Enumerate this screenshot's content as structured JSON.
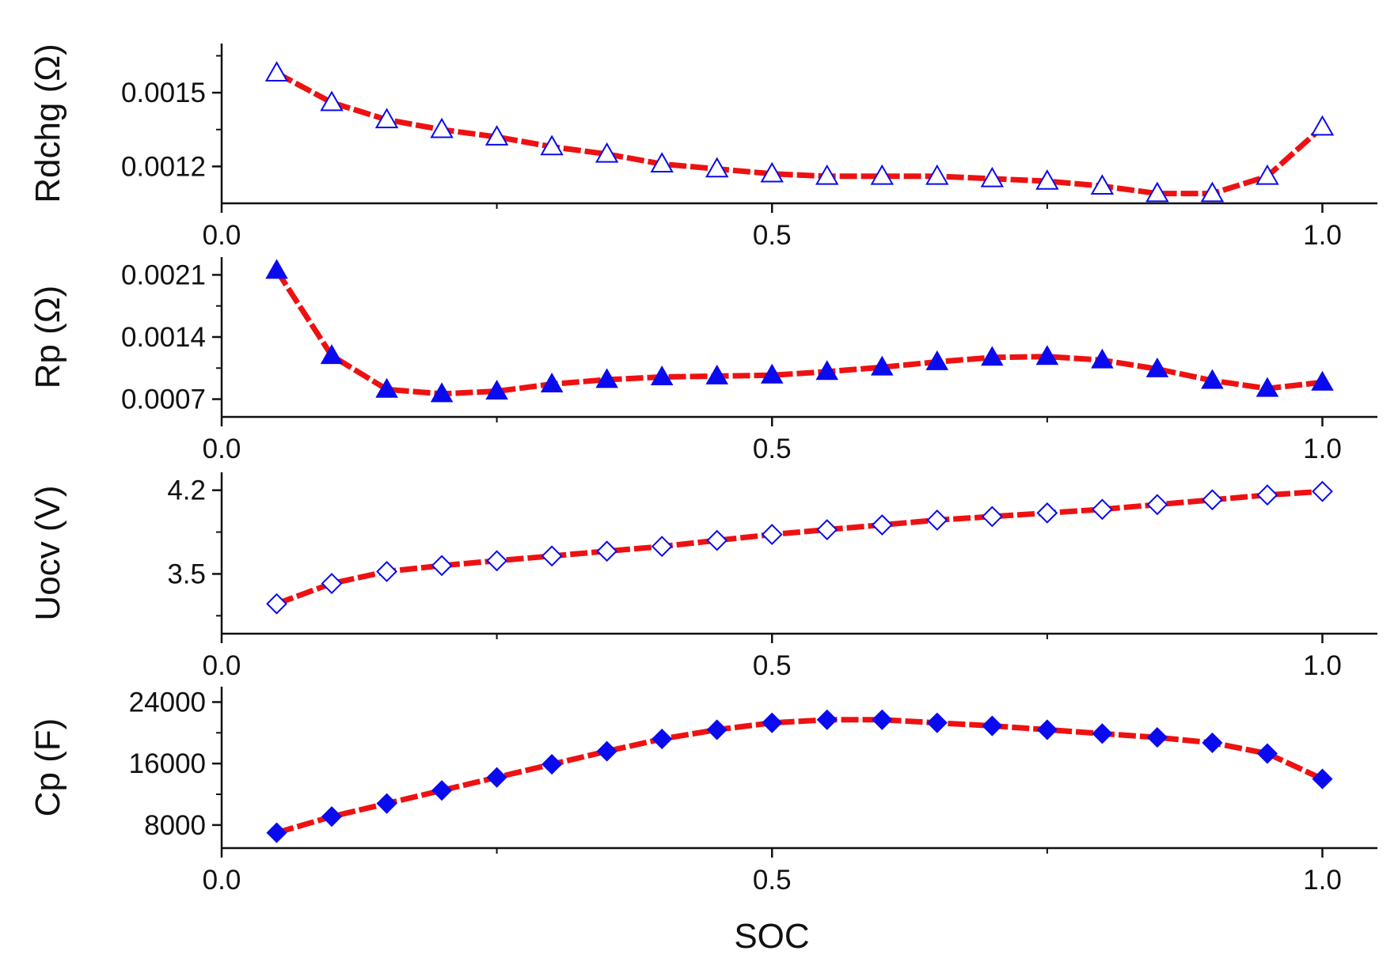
{
  "chart_data": [
    {
      "type": "line",
      "ylabel": "Rdchg (Ω)",
      "xlabel": "",
      "xlim": [
        0.0,
        1.05
      ],
      "ylim": [
        0.00105,
        0.0017
      ],
      "xticks": [
        "0.0",
        "0.5",
        "1.0"
      ],
      "yticks": [
        {
          "value": 0.0015,
          "label": "0.0015"
        },
        {
          "value": 0.0012,
          "label": "0.0012"
        }
      ],
      "marker": "triangle-open",
      "series": [
        {
          "name": "Rdchg",
          "x": [
            0.05,
            0.1,
            0.15,
            0.2,
            0.25,
            0.3,
            0.35,
            0.4,
            0.45,
            0.5,
            0.55,
            0.6,
            0.65,
            0.7,
            0.75,
            0.8,
            0.85,
            0.9,
            0.95,
            1.0
          ],
          "values": [
            0.00158,
            0.00146,
            0.00139,
            0.00135,
            0.00132,
            0.00128,
            0.00125,
            0.00121,
            0.00119,
            0.00117,
            0.00116,
            0.00116,
            0.00116,
            0.00115,
            0.00114,
            0.00112,
            0.00109,
            0.00109,
            0.00116,
            0.00136
          ]
        }
      ]
    },
    {
      "type": "line",
      "ylabel": "Rp (Ω)",
      "xlabel": "",
      "xlim": [
        0.0,
        1.05
      ],
      "ylim": [
        0.0005,
        0.0023
      ],
      "xticks": [
        "0.0",
        "0.5",
        "1.0"
      ],
      "yticks": [
        {
          "value": 0.0021,
          "label": "0.0021"
        },
        {
          "value": 0.0014,
          "label": "0.0014"
        },
        {
          "value": 0.0007,
          "label": "0.0007"
        }
      ],
      "marker": "triangle-filled",
      "series": [
        {
          "name": "Rp",
          "x": [
            0.05,
            0.1,
            0.15,
            0.2,
            0.25,
            0.3,
            0.35,
            0.4,
            0.45,
            0.5,
            0.55,
            0.6,
            0.65,
            0.7,
            0.75,
            0.8,
            0.85,
            0.9,
            0.95,
            1.0
          ],
          "values": [
            0.00215,
            0.00119,
            0.00081,
            0.00076,
            0.00079,
            0.00087,
            0.00092,
            0.00095,
            0.00096,
            0.00097,
            0.00101,
            0.00106,
            0.00112,
            0.00117,
            0.00118,
            0.00114,
            0.00104,
            0.00091,
            0.00082,
            0.00089
          ]
        }
      ]
    },
    {
      "type": "line",
      "ylabel": "Uocv (V)",
      "xlabel": "",
      "xlim": [
        0.0,
        1.05
      ],
      "ylim": [
        3.0,
        4.35
      ],
      "xticks": [
        "0.0",
        "0.5",
        "1.0"
      ],
      "yticks": [
        {
          "value": 4.2,
          "label": "4.2"
        },
        {
          "value": 3.5,
          "label": "3.5"
        }
      ],
      "marker": "diamond-open",
      "series": [
        {
          "name": "Uocv",
          "x": [
            0.05,
            0.1,
            0.15,
            0.2,
            0.25,
            0.3,
            0.35,
            0.4,
            0.45,
            0.5,
            0.55,
            0.6,
            0.65,
            0.7,
            0.75,
            0.8,
            0.85,
            0.9,
            0.95,
            1.0
          ],
          "values": [
            3.25,
            3.42,
            3.52,
            3.57,
            3.61,
            3.65,
            3.69,
            3.73,
            3.78,
            3.83,
            3.87,
            3.91,
            3.95,
            3.98,
            4.01,
            4.04,
            4.08,
            4.12,
            4.16,
            4.19
          ]
        }
      ]
    },
    {
      "type": "line",
      "ylabel": "Cp (F)",
      "xlabel": "SOC",
      "xlim": [
        0.0,
        1.05
      ],
      "ylim": [
        5000,
        26000
      ],
      "xticks": [
        "0.0",
        "0.5",
        "1.0"
      ],
      "yticks": [
        {
          "value": 24000,
          "label": "24000"
        },
        {
          "value": 16000,
          "label": "16000"
        },
        {
          "value": 8000,
          "label": "8000"
        }
      ],
      "marker": "diamond-filled",
      "series": [
        {
          "name": "Cp",
          "x": [
            0.05,
            0.1,
            0.15,
            0.2,
            0.25,
            0.3,
            0.35,
            0.4,
            0.45,
            0.5,
            0.55,
            0.6,
            0.65,
            0.7,
            0.75,
            0.8,
            0.85,
            0.9,
            0.95,
            1.0
          ],
          "values": [
            7000,
            9100,
            10800,
            12500,
            14200,
            15900,
            17600,
            19200,
            20400,
            21300,
            21700,
            21700,
            21300,
            20900,
            20400,
            19900,
            19400,
            18700,
            17300,
            14000
          ]
        }
      ]
    }
  ],
  "colors": {
    "line": "#ee1111",
    "marker": "#0a0aee",
    "axis": "#111111"
  }
}
